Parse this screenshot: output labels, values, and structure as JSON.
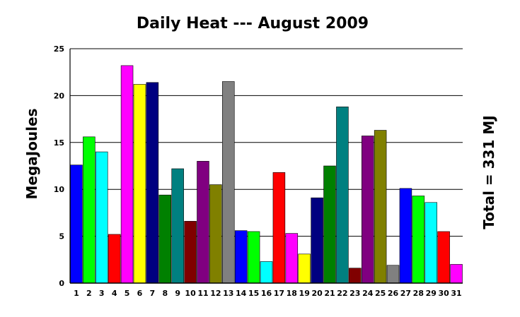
{
  "chart_data": {
    "type": "bar",
    "title": "Daily Heat --- August 2009",
    "xlabel": "",
    "ylabel": "MegaJoules",
    "right_label": "Total = 331 MJ",
    "ylim": [
      0,
      25
    ],
    "yticks": [
      0,
      5,
      10,
      15,
      20,
      25
    ],
    "grid": "horizontal",
    "legend": "none",
    "categories": [
      "1",
      "2",
      "3",
      "4",
      "5",
      "6",
      "7",
      "8",
      "9",
      "10",
      "11",
      "12",
      "13",
      "14",
      "15",
      "16",
      "17",
      "18",
      "19",
      "20",
      "21",
      "22",
      "23",
      "24",
      "25",
      "26",
      "27",
      "28",
      "29",
      "30",
      "31"
    ],
    "values": [
      12.6,
      15.6,
      14.0,
      5.2,
      23.2,
      21.2,
      21.4,
      9.4,
      12.2,
      6.6,
      13.0,
      10.5,
      21.5,
      5.6,
      5.5,
      2.3,
      11.8,
      5.3,
      3.1,
      9.1,
      12.5,
      18.8,
      1.6,
      15.7,
      16.3,
      1.9,
      10.1,
      9.3,
      8.6,
      5.5,
      2.0
    ],
    "colors": [
      "#0000ff",
      "#00ff00",
      "#00ffff",
      "#ff0000",
      "#ff00ff",
      "#ffff00",
      "#000080",
      "#008000",
      "#008080",
      "#800000",
      "#800080",
      "#808000",
      "#808080",
      "#0000ff",
      "#00ff00",
      "#00ffff",
      "#ff0000",
      "#ff00ff",
      "#ffff00",
      "#000080",
      "#008000",
      "#008080",
      "#800000",
      "#800080",
      "#808000",
      "#808080",
      "#0000ff",
      "#00ff00",
      "#00ffff",
      "#ff0000",
      "#ff00ff"
    ]
  }
}
